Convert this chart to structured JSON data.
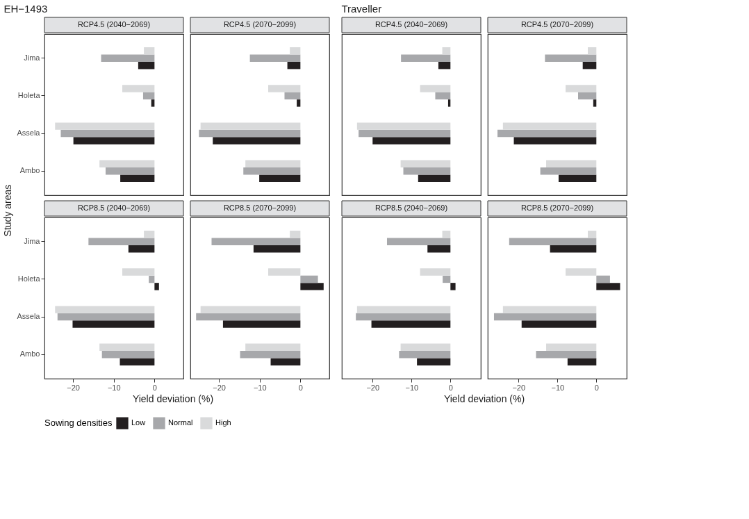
{
  "chart_data": [
    {
      "type": "bar",
      "orientation": "horizontal",
      "title": "RCP4.5 (2040−2069)",
      "subtitle": "EH−1493",
      "ylabel": "Study areas",
      "legend": "bottom",
      "legend_title": "Sowing densities",
      "tick_labels": "y",
      "categories": [
        "Jima",
        "Holeta",
        "Assela",
        "Ambo"
      ],
      "xlim": [
        -27,
        7.1
      ],
      "xticks": [
        -20,
        -10,
        0
      ],
      "series": [
        {
          "name": "Low",
          "color": "#231f20",
          "values": [
            -4.0,
            -0.8,
            -19.9,
            -8.4
          ]
        },
        {
          "name": "Normal",
          "color": "#a7a8ab",
          "values": [
            -13.1,
            -2.8,
            -23.0,
            -12.0
          ]
        },
        {
          "name": "High",
          "color": "#d9dadb",
          "values": [
            -2.6,
            -7.9,
            -24.4,
            -13.5
          ]
        }
      ]
    },
    {
      "type": "bar",
      "orientation": "horizontal",
      "title": "RCP4.5 (2070−2099)",
      "tick_labels": false,
      "categories": [
        "Jima",
        "Holeta",
        "Assela",
        "Ambo"
      ],
      "xlim": [
        -27,
        7.1
      ],
      "xticks": [
        -20,
        -10,
        0
      ],
      "series": [
        {
          "name": "Low",
          "color": "#231f20",
          "values": [
            -3.2,
            -0.9,
            -21.5,
            -10.1
          ]
        },
        {
          "name": "Normal",
          "color": "#a7a8ab",
          "values": [
            -12.4,
            -3.9,
            -24.9,
            -14.0
          ]
        },
        {
          "name": "High",
          "color": "#d9dadb",
          "values": [
            -2.6,
            -7.9,
            -24.5,
            -13.5
          ]
        }
      ]
    },
    {
      "type": "bar",
      "orientation": "horizontal",
      "title": "RCP4.5 (2040−2069)",
      "subtitle": "Traveller",
      "tick_labels": false,
      "categories": [
        "Jima",
        "Holeta",
        "Assela",
        "Ambo"
      ],
      "xlim": [
        -27.9,
        7.8
      ],
      "xticks": [
        -20,
        -10,
        0
      ],
      "series": [
        {
          "name": "Low",
          "color": "#231f20",
          "values": [
            -3.1,
            -0.6,
            -20.0,
            -8.3
          ]
        },
        {
          "name": "Normal",
          "color": "#a7a8ab",
          "values": [
            -12.7,
            -3.9,
            -23.6,
            -12.1
          ]
        },
        {
          "name": "High",
          "color": "#d9dadb",
          "values": [
            -2.1,
            -7.8,
            -24.0,
            -12.8
          ]
        }
      ]
    },
    {
      "type": "bar",
      "orientation": "horizontal",
      "title": "RCP4.5 (2070−2099)",
      "tick_labels": false,
      "categories": [
        "Jima",
        "Holeta",
        "Assela",
        "Ambo"
      ],
      "xlim": [
        -27.9,
        7.8
      ],
      "xticks": [
        -20,
        -10,
        0
      ],
      "series": [
        {
          "name": "Low",
          "color": "#231f20",
          "values": [
            -3.5,
            -0.8,
            -21.2,
            -9.7
          ]
        },
        {
          "name": "Normal",
          "color": "#a7a8ab",
          "values": [
            -13.2,
            -4.7,
            -25.4,
            -14.4
          ]
        },
        {
          "name": "High",
          "color": "#d9dadb",
          "values": [
            -2.2,
            -7.9,
            -24.0,
            -12.9
          ]
        }
      ]
    },
    {
      "type": "bar",
      "orientation": "horizontal",
      "title": "RCP8.5 (2040−2069)",
      "xlabel": "Yield deviation (%)",
      "categories": [
        "Jima",
        "Holeta",
        "Assela",
        "Ambo"
      ],
      "xlim": [
        -27,
        7.1
      ],
      "xticks": [
        -20,
        -10,
        0
      ],
      "series": [
        {
          "name": "Low",
          "color": "#231f20",
          "values": [
            -6.4,
            1.1,
            -20.1,
            -8.5
          ]
        },
        {
          "name": "Normal",
          "color": "#a7a8ab",
          "values": [
            -16.2,
            -1.4,
            -23.8,
            -12.9
          ]
        },
        {
          "name": "High",
          "color": "#d9dadb",
          "values": [
            -2.6,
            -7.9,
            -24.4,
            -13.5
          ]
        }
      ]
    },
    {
      "type": "bar",
      "orientation": "horizontal",
      "title": "RCP8.5 (2070−2099)",
      "tick_labels": "x",
      "categories": [
        "Jima",
        "Holeta",
        "Assela",
        "Ambo"
      ],
      "xlim": [
        -27,
        7.1
      ],
      "xticks": [
        -20,
        -10,
        0
      ],
      "series": [
        {
          "name": "Low",
          "color": "#231f20",
          "values": [
            -11.5,
            5.7,
            -19.0,
            -7.3
          ]
        },
        {
          "name": "Normal",
          "color": "#a7a8ab",
          "values": [
            -21.8,
            4.3,
            -25.6,
            -14.8
          ]
        },
        {
          "name": "High",
          "color": "#d9dadb",
          "values": [
            -2.6,
            -7.9,
            -24.5,
            -13.5
          ]
        }
      ]
    },
    {
      "type": "bar",
      "orientation": "horizontal",
      "title": "RCP8.5 (2040−2069)",
      "xlabel": "Yield deviation (%)",
      "tick_labels": "x",
      "categories": [
        "Jima",
        "Holeta",
        "Assela",
        "Ambo"
      ],
      "xlim": [
        -27.9,
        7.8
      ],
      "xticks": [
        -20,
        -10,
        0
      ],
      "series": [
        {
          "name": "Low",
          "color": "#231f20",
          "values": [
            -5.9,
            1.3,
            -20.3,
            -8.6
          ]
        },
        {
          "name": "Normal",
          "color": "#a7a8ab",
          "values": [
            -16.3,
            -2.0,
            -24.3,
            -13.2
          ]
        },
        {
          "name": "High",
          "color": "#d9dadb",
          "values": [
            -2.1,
            -7.8,
            -24.0,
            -12.8
          ]
        }
      ]
    },
    {
      "type": "bar",
      "orientation": "horizontal",
      "title": "RCP8.5 (2070−2099)",
      "tick_labels": "x",
      "categories": [
        "Jima",
        "Holeta",
        "Assela",
        "Ambo"
      ],
      "xlim": [
        -27.9,
        7.8
      ],
      "xticks": [
        -20,
        -10,
        0
      ],
      "series": [
        {
          "name": "Low",
          "color": "#231f20",
          "values": [
            -11.9,
            6.1,
            -19.2,
            -7.4
          ]
        },
        {
          "name": "Normal",
          "color": "#a7a8ab",
          "values": [
            -22.4,
            3.5,
            -26.3,
            -15.5
          ]
        },
        {
          "name": "High",
          "color": "#d9dadb",
          "values": [
            -2.2,
            -7.9,
            -24.0,
            -12.9
          ]
        }
      ]
    }
  ]
}
